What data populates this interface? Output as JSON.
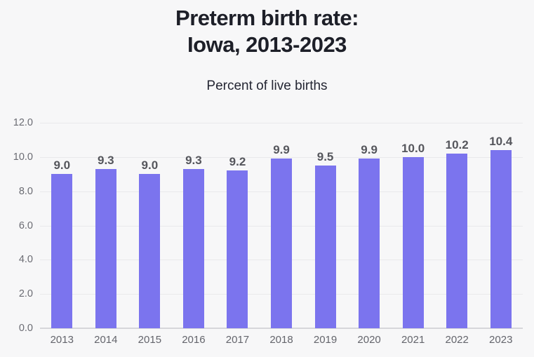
{
  "page": {
    "background": "#f7f7f8"
  },
  "header": {
    "title_line1": "Preterm birth rate:",
    "title_line2": "Iowa, 2013-2023",
    "subtitle": "Percent of live births"
  },
  "chart_data": {
    "type": "bar",
    "title": "Preterm birth rate: Iowa, 2013-2023",
    "subtitle": "Percent of live births",
    "categories": [
      "2013",
      "2014",
      "2015",
      "2016",
      "2017",
      "2018",
      "2019",
      "2020",
      "2021",
      "2022",
      "2023"
    ],
    "values": [
      9.0,
      9.3,
      9.0,
      9.3,
      9.2,
      9.9,
      9.5,
      9.9,
      10.0,
      10.2,
      10.4
    ],
    "value_labels": [
      "9.0",
      "9.3",
      "9.0",
      "9.3",
      "9.2",
      "9.9",
      "9.5",
      "9.9",
      "10.0",
      "10.2",
      "10.4"
    ],
    "xlabel": "",
    "ylabel": "Percent of live births",
    "ylim": [
      0,
      12
    ],
    "yticks": [
      "12.0",
      "10.0",
      "8.0",
      "6.0",
      "4.0",
      "2.0",
      "0.0"
    ],
    "grid": true,
    "legend": false,
    "bar_color": "#7b74ee",
    "value_label_color": "#55565c",
    "axis_label_color": "#6b6c73",
    "gridline_color": "#e9e9eb",
    "baseline_color": "#d6d6da"
  }
}
